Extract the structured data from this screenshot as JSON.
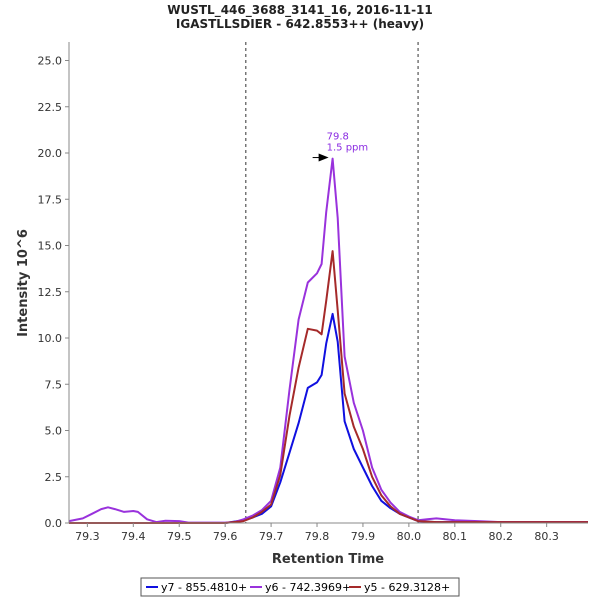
{
  "chart_data": {
    "type": "line",
    "title": "WUSTL_446_3688_3141_16, 2016-11-11",
    "subtitle": "IGASTLLSDIER - 642.8553++ (heavy)",
    "xlabel": "Retention Time",
    "ylabel": "Intensity 10^6",
    "xlim": [
      79.26,
      80.39
    ],
    "ylim": [
      0,
      26
    ],
    "x_ticks": [
      "79.3",
      "79.4",
      "79.5",
      "79.6",
      "79.7",
      "79.8",
      "79.9",
      "80.0",
      "80.1",
      "80.2",
      "80.3"
    ],
    "y_ticks": [
      "0.0",
      "2.5",
      "5.0",
      "7.5",
      "10.0",
      "12.5",
      "15.0",
      "17.5",
      "20.0",
      "22.5",
      "25.0"
    ],
    "boundaries": [
      79.645,
      80.02
    ],
    "annotation": {
      "x": 79.834,
      "y": 19.7,
      "line1": "79.8",
      "line2": "1.5 ppm",
      "color": "#8a2be2"
    },
    "grid": false,
    "legend_position": "bottom",
    "series": [
      {
        "name": "y7 - 855.4810+",
        "color": "#1010e0",
        "points": [
          [
            79.26,
            0
          ],
          [
            79.6,
            0
          ],
          [
            79.64,
            0.15
          ],
          [
            79.66,
            0.3
          ],
          [
            79.68,
            0.5
          ],
          [
            79.7,
            0.9
          ],
          [
            79.72,
            2.2
          ],
          [
            79.74,
            3.8
          ],
          [
            79.76,
            5.4
          ],
          [
            79.78,
            7.3
          ],
          [
            79.8,
            7.6
          ],
          [
            79.81,
            8.0
          ],
          [
            79.82,
            9.7
          ],
          [
            79.834,
            11.3
          ],
          [
            79.845,
            9.8
          ],
          [
            79.86,
            5.5
          ],
          [
            79.88,
            4.0
          ],
          [
            79.9,
            3.0
          ],
          [
            79.92,
            2.0
          ],
          [
            79.94,
            1.2
          ],
          [
            79.96,
            0.8
          ],
          [
            79.98,
            0.5
          ],
          [
            80.0,
            0.3
          ],
          [
            80.02,
            0.1
          ],
          [
            80.06,
            0.05
          ],
          [
            80.39,
            0.05
          ]
        ]
      },
      {
        "name": "y6 - 742.3969+",
        "color": "#9932dc",
        "points": [
          [
            79.26,
            0.1
          ],
          [
            79.29,
            0.25
          ],
          [
            79.31,
            0.5
          ],
          [
            79.33,
            0.75
          ],
          [
            79.345,
            0.85
          ],
          [
            79.36,
            0.75
          ],
          [
            79.38,
            0.6
          ],
          [
            79.4,
            0.65
          ],
          [
            79.41,
            0.6
          ],
          [
            79.43,
            0.2
          ],
          [
            79.45,
            0.05
          ],
          [
            79.47,
            0.12
          ],
          [
            79.5,
            0.1
          ],
          [
            79.52,
            0.02
          ],
          [
            79.6,
            0.02
          ],
          [
            79.62,
            0.05
          ],
          [
            79.64,
            0.2
          ],
          [
            79.66,
            0.4
          ],
          [
            79.68,
            0.7
          ],
          [
            79.7,
            1.2
          ],
          [
            79.72,
            3.0
          ],
          [
            79.74,
            7.2
          ],
          [
            79.76,
            11.0
          ],
          [
            79.78,
            13.0
          ],
          [
            79.8,
            13.5
          ],
          [
            79.81,
            14.0
          ],
          [
            79.82,
            16.8
          ],
          [
            79.834,
            19.7
          ],
          [
            79.845,
            16.5
          ],
          [
            79.86,
            9.0
          ],
          [
            79.88,
            6.5
          ],
          [
            79.9,
            5.0
          ],
          [
            79.92,
            3.0
          ],
          [
            79.94,
            1.8
          ],
          [
            79.96,
            1.1
          ],
          [
            79.98,
            0.6
          ],
          [
            80.0,
            0.35
          ],
          [
            80.02,
            0.15
          ],
          [
            80.04,
            0.2
          ],
          [
            80.06,
            0.25
          ],
          [
            80.1,
            0.15
          ],
          [
            80.15,
            0.1
          ],
          [
            80.2,
            0.05
          ],
          [
            80.39,
            0.05
          ]
        ]
      },
      {
        "name": "y5 - 629.3128+",
        "color": "#a52a2a",
        "points": [
          [
            79.26,
            0
          ],
          [
            79.6,
            0
          ],
          [
            79.64,
            0.1
          ],
          [
            79.66,
            0.3
          ],
          [
            79.68,
            0.6
          ],
          [
            79.7,
            1.0
          ],
          [
            79.72,
            2.6
          ],
          [
            79.74,
            5.8
          ],
          [
            79.76,
            8.4
          ],
          [
            79.78,
            10.5
          ],
          [
            79.8,
            10.4
          ],
          [
            79.81,
            10.2
          ],
          [
            79.82,
            12.0
          ],
          [
            79.834,
            14.7
          ],
          [
            79.845,
            11.5
          ],
          [
            79.86,
            7.0
          ],
          [
            79.88,
            5.2
          ],
          [
            79.9,
            4.0
          ],
          [
            79.92,
            2.5
          ],
          [
            79.94,
            1.5
          ],
          [
            79.96,
            0.9
          ],
          [
            79.98,
            0.5
          ],
          [
            80.0,
            0.3
          ],
          [
            80.02,
            0.1
          ],
          [
            80.06,
            0.05
          ],
          [
            80.39,
            0.05
          ]
        ]
      }
    ]
  }
}
